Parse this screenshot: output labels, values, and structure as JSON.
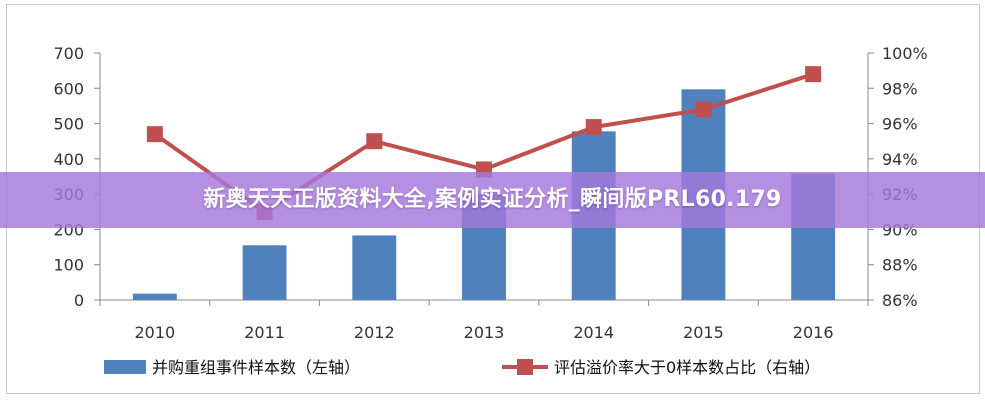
{
  "overlay": {
    "banner_text": "新奥天天正版资料大全,案例实证分析_瞬间版PRL60.179"
  },
  "colors": {
    "bar": "#4f81bd",
    "line": "#c0504d",
    "banner": "#a578dc"
  },
  "chart_data": {
    "type": "bar",
    "categories": [
      "2010",
      "2011",
      "2012",
      "2013",
      "2014",
      "2015",
      "2016"
    ],
    "series": [
      {
        "name": "并购重组事件样本数（左轴）",
        "type": "bar",
        "axis": "left",
        "values": [
          18,
          155,
          183,
          300,
          478,
          597,
          358
        ]
      },
      {
        "name": "评估溢价率大于0样本数占比（右轴）",
        "type": "line",
        "axis": "right",
        "values": [
          95.4,
          91.0,
          95.0,
          93.4,
          95.8,
          96.8,
          98.8
        ]
      }
    ],
    "y_left": {
      "ylim": [
        0,
        700
      ],
      "ticks": [
        "0",
        "100",
        "200",
        "300",
        "400",
        "500",
        "600",
        "700"
      ]
    },
    "y_right": {
      "ylim": [
        86,
        100
      ],
      "ticks": [
        "86%",
        "88%",
        "90%",
        "92%",
        "94%",
        "96%",
        "98%",
        "100%"
      ]
    },
    "legend_position": "bottom",
    "grid": false
  }
}
